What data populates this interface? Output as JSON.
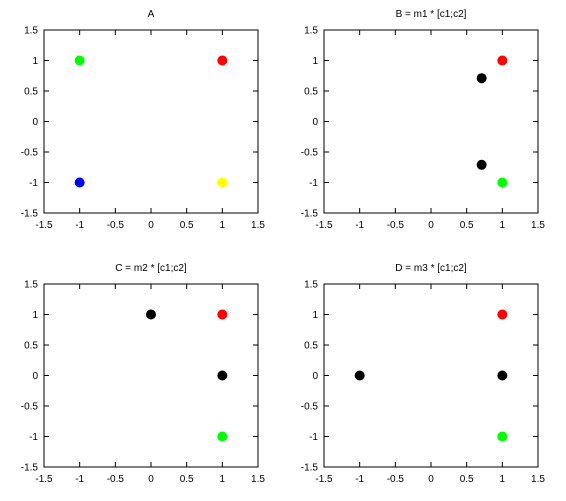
{
  "chart_data": [
    {
      "type": "scatter",
      "title": "A",
      "xlim": [
        -1.5,
        1.5
      ],
      "ylim": [
        -1.5,
        1.5
      ],
      "xticks": [
        "-1.5",
        "-1",
        "-0.5",
        "0",
        "0.5",
        "1",
        "1.5"
      ],
      "yticks": [
        "-1.5",
        "-1",
        "-0.5",
        "0",
        "0.5",
        "1",
        "1.5"
      ],
      "grid": false,
      "points": [
        {
          "x": -1,
          "y": 1,
          "color": "#00ff00"
        },
        {
          "x": 1,
          "y": 1,
          "color": "#ff0000"
        },
        {
          "x": -1,
          "y": -1,
          "color": "#0000ff"
        },
        {
          "x": 1,
          "y": -1,
          "color": "#ffff00"
        }
      ]
    },
    {
      "type": "scatter",
      "title": "B = m1 * [c1;c2]",
      "xlim": [
        -1.5,
        1.5
      ],
      "ylim": [
        -1.5,
        1.5
      ],
      "xticks": [
        "-1.5",
        "-1",
        "-0.5",
        "0",
        "0.5",
        "1",
        "1.5"
      ],
      "yticks": [
        "-1.5",
        "-1",
        "-0.5",
        "0",
        "0.5",
        "1",
        "1.5"
      ],
      "grid": false,
      "points": [
        {
          "x": 1,
          "y": 1,
          "color": "#ff0000"
        },
        {
          "x": 0.71,
          "y": 0.71,
          "color": "#000000"
        },
        {
          "x": 0.71,
          "y": -0.71,
          "color": "#000000"
        },
        {
          "x": 1,
          "y": -1,
          "color": "#00ff00"
        }
      ]
    },
    {
      "type": "scatter",
      "title": "C = m2 * [c1;c2]",
      "xlim": [
        -1.5,
        1.5
      ],
      "ylim": [
        -1.5,
        1.5
      ],
      "xticks": [
        "-1.5",
        "-1",
        "-0.5",
        "0",
        "0.5",
        "1",
        "1.5"
      ],
      "yticks": [
        "-1.5",
        "-1",
        "-0.5",
        "0",
        "0.5",
        "1",
        "1.5"
      ],
      "grid": false,
      "points": [
        {
          "x": 0,
          "y": 1,
          "color": "#000000"
        },
        {
          "x": 1,
          "y": 1,
          "color": "#ff0000"
        },
        {
          "x": 1,
          "y": 0,
          "color": "#000000"
        },
        {
          "x": 1,
          "y": -1,
          "color": "#00ff00"
        }
      ]
    },
    {
      "type": "scatter",
      "title": "D = m3 * [c1;c2]",
      "xlim": [
        -1.5,
        1.5
      ],
      "ylim": [
        -1.5,
        1.5
      ],
      "xticks": [
        "-1.5",
        "-1",
        "-0.5",
        "0",
        "0.5",
        "1",
        "1.5"
      ],
      "yticks": [
        "-1.5",
        "-1",
        "-0.5",
        "0",
        "0.5",
        "1",
        "1.5"
      ],
      "grid": false,
      "points": [
        {
          "x": 1,
          "y": 1,
          "color": "#ff0000"
        },
        {
          "x": -1,
          "y": 0,
          "color": "#000000"
        },
        {
          "x": 1,
          "y": 0,
          "color": "#000000"
        },
        {
          "x": 1,
          "y": -1,
          "color": "#00ff00"
        }
      ]
    }
  ]
}
